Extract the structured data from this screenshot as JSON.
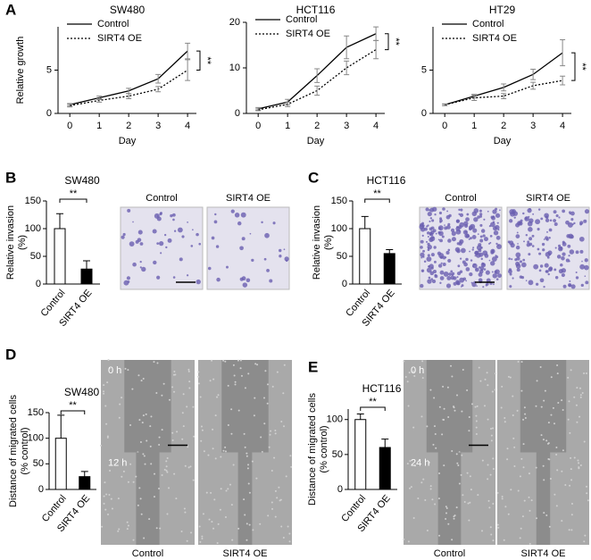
{
  "panel_labels": [
    "A",
    "B",
    "C",
    "D",
    "E"
  ],
  "image_panels": [
    {
      "labels": [
        "Control",
        "SIRT4 OE"
      ]
    },
    {
      "labels": [
        "Control",
        "SIRT4 OE"
      ]
    },
    {
      "labels": [
        "Control",
        "SIRT4 OE"
      ],
      "timepoints": [
        "0 h",
        "12 h"
      ]
    },
    {
      "labels": [
        "Control",
        "SIRT4 OE"
      ],
      "timepoints": [
        "0 h",
        "24 h"
      ]
    }
  ],
  "chart_data": [
    {
      "type": "line",
      "title": "SW480",
      "xlabel": "Day",
      "ylabel": "Relative growth",
      "significance": "**",
      "x": [
        0,
        1,
        2,
        3,
        4
      ],
      "xlim": [
        -0.4,
        4.3
      ],
      "xticks": [
        0,
        1,
        2,
        3,
        4
      ],
      "ylim": [
        0,
        10
      ],
      "yticks": [
        0,
        5
      ],
      "series": [
        {
          "name": "Control",
          "color": "#000000",
          "style": "solid",
          "values": [
            1,
            1.8,
            2.6,
            4,
            7.2
          ],
          "errors": [
            0.15,
            0.2,
            0.3,
            0.5,
            0.9
          ]
        },
        {
          "name": "SIRT4 OE",
          "color": "#000000",
          "style": "dotted",
          "values": [
            0.9,
            1.5,
            2,
            2.8,
            5
          ],
          "errors": [
            0.15,
            0.2,
            0.3,
            0.3,
            1.2
          ]
        }
      ]
    },
    {
      "type": "line",
      "title": "HCT116",
      "xlabel": "Day",
      "significance": "**",
      "x": [
        0,
        1,
        2,
        3,
        4
      ],
      "xlim": [
        -0.4,
        4.3
      ],
      "xticks": [
        0,
        1,
        2,
        3,
        4
      ],
      "ylim": [
        0,
        20
      ],
      "yticks": [
        0,
        10,
        20
      ],
      "series": [
        {
          "name": "Control",
          "color": "#000000",
          "style": "solid",
          "values": [
            1,
            2.5,
            8.3,
            14.5,
            17.5
          ],
          "errors": [
            0.3,
            0.6,
            1.5,
            2.5,
            1.5
          ]
        },
        {
          "name": "SIRT4 OE",
          "color": "#000000",
          "style": "dotted",
          "values": [
            0.8,
            2,
            5,
            10,
            14
          ],
          "errors": [
            0.2,
            0.5,
            1,
            1.5,
            2
          ]
        }
      ]
    },
    {
      "type": "line",
      "title": "HT29",
      "xlabel": "Day",
      "significance": "**",
      "x": [
        0,
        1,
        2,
        3,
        4
      ],
      "xlim": [
        -0.4,
        4.3
      ],
      "xticks": [
        0,
        1,
        2,
        3,
        4
      ],
      "ylim": [
        0,
        10
      ],
      "yticks": [
        0,
        5
      ],
      "series": [
        {
          "name": "Control",
          "color": "#000000",
          "style": "solid",
          "values": [
            1,
            2,
            3,
            4.5,
            7
          ],
          "errors": [
            0.1,
            0.2,
            0.4,
            0.6,
            1.5
          ]
        },
        {
          "name": "SIRT4 OE",
          "color": "#000000",
          "style": "dotted",
          "values": [
            1,
            1.8,
            2,
            3.2,
            3.8
          ],
          "errors": [
            0.1,
            0.3,
            0.3,
            0.4,
            0.5
          ]
        }
      ]
    },
    {
      "type": "bar",
      "title": "SW480",
      "ylabel": [
        "Relative invasion",
        "(%)"
      ],
      "significance": "**",
      "categories": [
        "Control",
        "SIRT4 OE"
      ],
      "values": [
        100,
        27
      ],
      "errors": [
        27,
        15
      ],
      "colors": [
        "#ffffff",
        "#000000"
      ],
      "ylim": [
        0,
        150
      ],
      "yticks": [
        0,
        50,
        100,
        150
      ]
    },
    {
      "type": "bar",
      "title": "HCT116",
      "ylabel": [
        "Relative invasion",
        "(%)"
      ],
      "significance": "**",
      "categories": [
        "Control",
        "SIRT4 OE"
      ],
      "values": [
        100,
        55
      ],
      "errors": [
        22,
        7
      ],
      "colors": [
        "#ffffff",
        "#000000"
      ],
      "ylim": [
        0,
        150
      ],
      "yticks": [
        0,
        50,
        100,
        150
      ]
    },
    {
      "type": "bar",
      "title": "SW480",
      "ylabel": [
        "Distance of migrated cells",
        "(% control)"
      ],
      "significance": "**",
      "categories": [
        "Control",
        "SIRT4 OE"
      ],
      "values": [
        100,
        25
      ],
      "errors": [
        45,
        10
      ],
      "colors": [
        "#ffffff",
        "#000000"
      ],
      "ylim": [
        0,
        150
      ],
      "yticks": [
        0,
        50,
        100,
        150
      ]
    },
    {
      "type": "bar",
      "title": "HCT116",
      "ylabel": [
        "Distance of migrated cells",
        "(% control)"
      ],
      "significance": "**",
      "categories": [
        "Control",
        "SIRT4 OE"
      ],
      "values": [
        100,
        60
      ],
      "errors": [
        8,
        12
      ],
      "colors": [
        "#ffffff",
        "#000000"
      ],
      "ylim": [
        0,
        115
      ],
      "yticks": [
        0,
        50,
        100
      ]
    }
  ]
}
